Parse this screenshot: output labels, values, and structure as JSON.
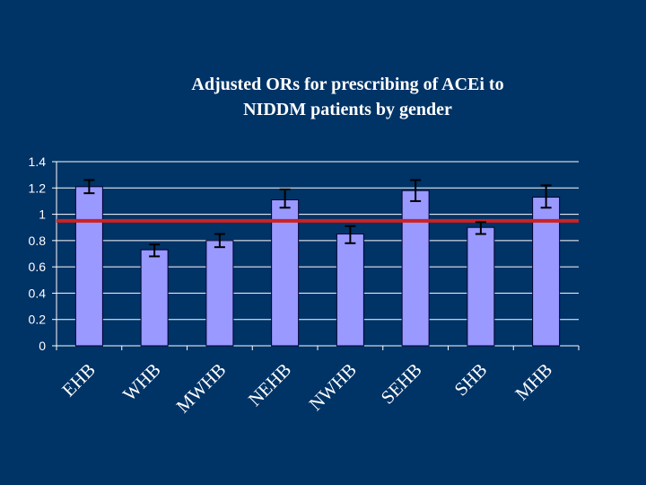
{
  "chart_data": {
    "type": "bar",
    "title_lines": [
      "Adjusted ORs for prescribing of ACEi to",
      "NIDDM patients by gender"
    ],
    "categories": [
      "EHB",
      "WHB",
      "MWHB",
      "NEHB",
      "NWHB",
      "SEHB",
      "SHB",
      "MHB"
    ],
    "values": [
      1.21,
      0.73,
      0.8,
      1.11,
      0.85,
      1.18,
      0.9,
      1.13
    ],
    "error_low": [
      1.16,
      0.68,
      0.75,
      1.05,
      0.78,
      1.1,
      0.85,
      1.05
    ],
    "error_high": [
      1.26,
      0.77,
      0.85,
      1.19,
      0.91,
      1.26,
      0.94,
      1.22
    ],
    "reference_line": 0.95,
    "ylim": [
      0,
      1.4
    ],
    "yticks": [
      "0",
      "0.2",
      "0.4",
      "0.6",
      "0.8",
      "1",
      "1.2",
      "1.4"
    ],
    "ytick_values": [
      0,
      0.2,
      0.4,
      0.6,
      0.8,
      1,
      1.2,
      1.4
    ],
    "grid": true,
    "xlabel": "",
    "ylabel": "",
    "colors": {
      "background": "#003366",
      "bar_fill": "#9999ff",
      "bar_stroke": "#000033",
      "reference_line": "#cc2222",
      "gridline": "#ffffff",
      "text": "#ffffff",
      "error_bar": "#000000"
    }
  }
}
